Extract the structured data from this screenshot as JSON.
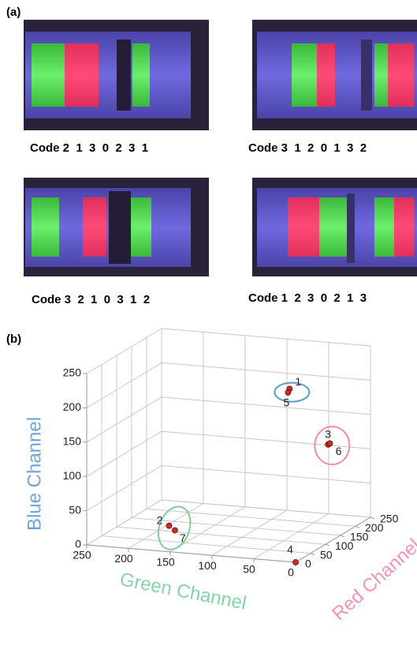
{
  "panel_a": {
    "label": "(a)",
    "codes": [
      "Code 2  1  3  0  2  3  1",
      "Code 3  1  2  0  1  3  2",
      "Code 3  2  1  0  3  1  2",
      "Code 1  2  3  0  2  1  3"
    ]
  },
  "chart_data": {
    "type": "scatter3d",
    "label": "(b)",
    "xlabel": "Green Channel",
    "ylabel": "Red Channel",
    "zlabel": "Blue Channel",
    "xlim": [
      0,
      250
    ],
    "ylim": [
      0,
      250
    ],
    "zlim": [
      0,
      250
    ],
    "xticks": [
      0,
      50,
      100,
      150,
      200,
      250
    ],
    "yticks": [
      0,
      50,
      100,
      150,
      200,
      250
    ],
    "zticks": [
      0,
      50,
      100,
      150,
      200,
      250
    ],
    "grid": true,
    "color": "#d42a1e",
    "point_labels": [
      "1",
      "2",
      "3",
      "4",
      "5",
      "6",
      "7"
    ],
    "x": [
      70,
      155,
      40,
      0,
      70,
      40,
      148
    ],
    "y": [
      175,
      10,
      220,
      0,
      170,
      226,
      10
    ],
    "z": [
      200,
      35,
      110,
      0,
      196,
      110,
      29
    ]
  }
}
